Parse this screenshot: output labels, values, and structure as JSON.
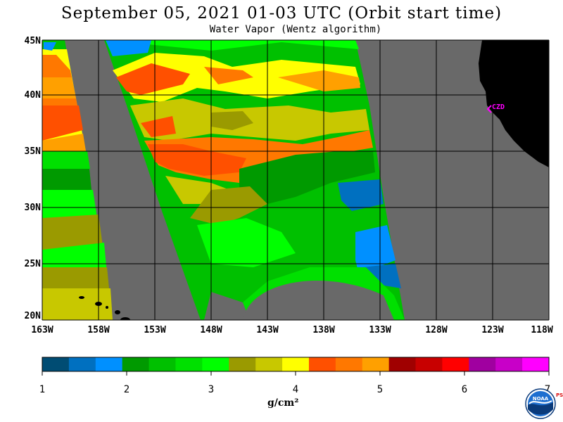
{
  "header": {
    "title": "September 05, 2021  01-03 UTC  (Orbit start time)",
    "subtitle": "Water Vapor (Wentz algorithm)"
  },
  "map": {
    "lat_labels": [
      "45N",
      "40N",
      "35N",
      "30N",
      "25N",
      "20N"
    ],
    "lon_labels": [
      "163W",
      "158W",
      "153W",
      "148W",
      "143W",
      "138W",
      "133W",
      "128W",
      "123W",
      "118W"
    ],
    "station": "CZD",
    "colors": {
      "no_data": "#696969",
      "land": "#000000",
      "grid": "#000000",
      "station": "#ff00ff"
    }
  },
  "colorbar": {
    "tick_labels": [
      "1",
      "2",
      "3",
      "4",
      "5",
      "6",
      "7"
    ],
    "units": "g/cm²",
    "colors": [
      "#004c73",
      "#0070c0",
      "#0090ff",
      "#009a00",
      "#00c000",
      "#00e000",
      "#00ff00",
      "#9a9a00",
      "#c8c800",
      "#ffff00",
      "#ff5000",
      "#ff7800",
      "#ffa000",
      "#a00000",
      "#c80000",
      "#ff0000",
      "#a000a0",
      "#c800c8",
      "#ff00ff"
    ]
  },
  "footer": {
    "logo_text": "NOAA",
    "psl_text": "PSL"
  }
}
